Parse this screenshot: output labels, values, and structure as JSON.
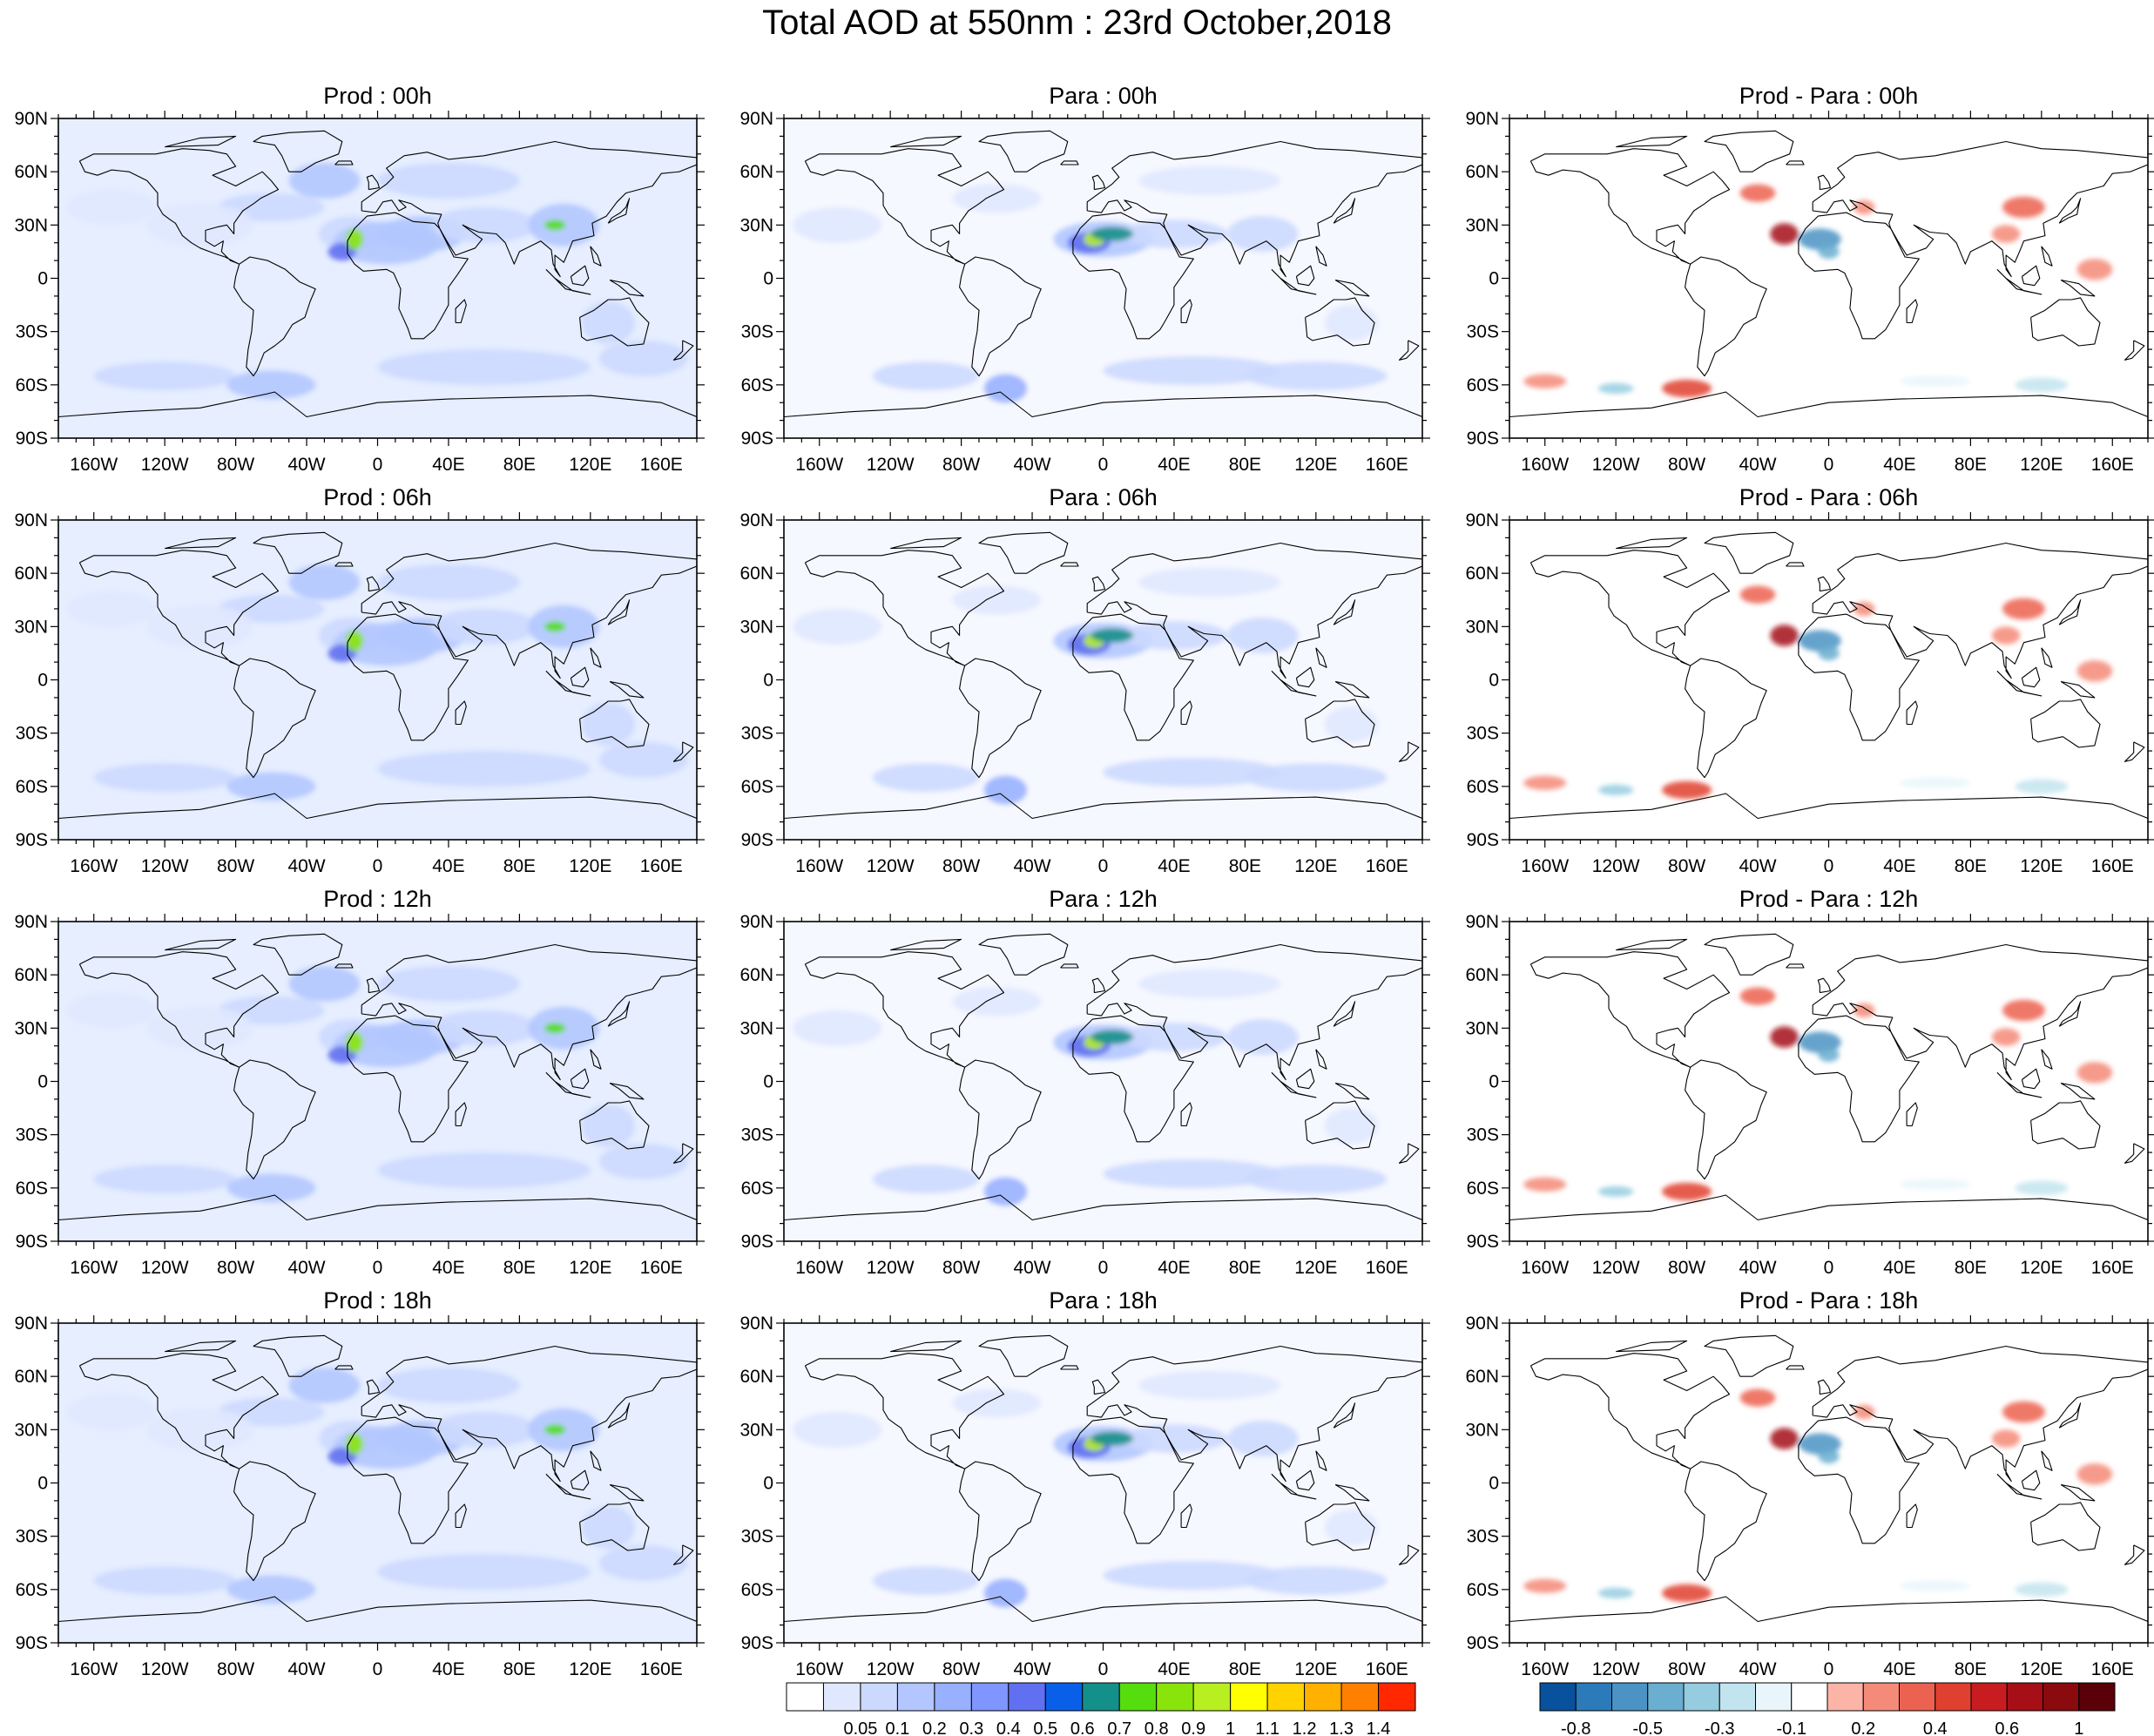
{
  "title": "Total AOD at 550nm : 23rd October,2018",
  "panels": [
    {
      "title": "Prod : 00h",
      "kind": "prod"
    },
    {
      "title": "Para : 00h",
      "kind": "para"
    },
    {
      "title": "Prod - Para : 00h",
      "kind": "diff"
    },
    {
      "title": "Prod : 06h",
      "kind": "prod"
    },
    {
      "title": "Para : 06h",
      "kind": "para"
    },
    {
      "title": "Prod - Para : 06h",
      "kind": "diff"
    },
    {
      "title": "Prod : 12h",
      "kind": "prod"
    },
    {
      "title": "Para : 12h",
      "kind": "para"
    },
    {
      "title": "Prod - Para : 12h",
      "kind": "diff"
    },
    {
      "title": "Prod : 18h",
      "kind": "prod"
    },
    {
      "title": "Para : 18h",
      "kind": "para"
    },
    {
      "title": "Prod - Para : 18h",
      "kind": "diff"
    }
  ],
  "lat_ticks": [
    "90N",
    "60N",
    "30N",
    "0",
    "30S",
    "60S",
    "90S"
  ],
  "lon_ticks": [
    "160W",
    "120W",
    "80W",
    "40W",
    "0",
    "40E",
    "80E",
    "120E",
    "160E"
  ],
  "aod_colorbar": {
    "labels": [
      "0.05",
      "0.1",
      "0.2",
      "0.3",
      "0.4",
      "0.5",
      "0.6",
      "0.7",
      "0.8",
      "0.9",
      "1",
      "1.1",
      "1.2",
      "1.3",
      "1.4"
    ],
    "colors": [
      "#ffffff",
      "#e0e8ff",
      "#ccd9ff",
      "#b3c6ff",
      "#99b0ff",
      "#7f95ff",
      "#6070f0",
      "#0a5fe8",
      "#14908a",
      "#55dd0e",
      "#88e40a",
      "#b8ef20",
      "#ffff00",
      "#ffd200",
      "#ffb000",
      "#ff8000",
      "#ff2800"
    ]
  },
  "diff_colorbar": {
    "labels": [
      "-0.8",
      "-0.5",
      "-0.3",
      "-0.1",
      "0.2",
      "0.4",
      "0.6",
      "1"
    ],
    "colors": [
      "#08519c",
      "#2b7bba",
      "#4a93c4",
      "#6aaed0",
      "#95cce0",
      "#c2e4ef",
      "#e8f6fb",
      "#ffffff",
      "#fbb4a6",
      "#f48a78",
      "#ec6250",
      "#e0402f",
      "#c81d20",
      "#a50f15",
      "#8a0a0e",
      "#5a0008"
    ]
  },
  "colors": {
    "land_outline": "#000000",
    "frame": "#000000"
  }
}
